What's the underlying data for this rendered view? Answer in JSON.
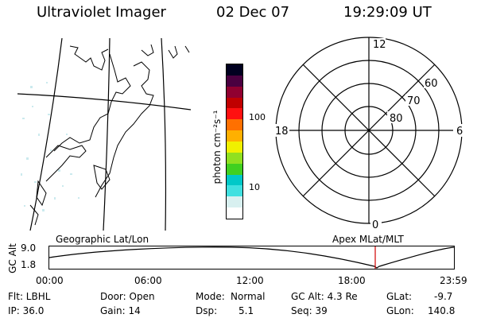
{
  "header": {
    "instrument": "Ultraviolet Imager",
    "date": "02 Dec 07",
    "time": "19:29:09 UT"
  },
  "geo_map": {
    "label": "Geographic Lat/Lon"
  },
  "colorbar": {
    "unit_label": "photon cm⁻²s⁻¹",
    "tick_100": "100",
    "tick_10": "10",
    "colors": [
      "#ffffff",
      "#d8f0f0",
      "#40e0e0",
      "#00c8c8",
      "#40d020",
      "#90e020",
      "#f0f000",
      "#ffb000",
      "#ff7000",
      "#ff1010",
      "#c00000",
      "#900030",
      "#4a0040",
      "#000020"
    ]
  },
  "polar_plot": {
    "label": "Apex MLat/MLT",
    "mlt_12": "12",
    "mlt_18": "18",
    "mlt_6": "6",
    "mlt_0": "0",
    "lat_60": "60",
    "lat_70": "70",
    "lat_80": "80"
  },
  "altitude_plot": {
    "axis_label": "GC Alt",
    "y_max": "9.0",
    "y_min": "1.8",
    "x_ticks": [
      "00:00",
      "06:00",
      "12:00",
      "18:00",
      "23:59"
    ],
    "marker_color": "#d00000"
  },
  "footer": {
    "filter": "Flt: LBHL",
    "door": "Door: Open",
    "mode_label": "Mode:",
    "mode_value": "Normal",
    "gc_alt": "GC Alt: 4.3 Re",
    "glat_label": "GLat:",
    "glat_value": "-9.7",
    "ip": "IP: 36.0",
    "gain": "Gain: 14",
    "dsp_label": "Dsp:",
    "dsp_value": "5.1",
    "seq": "Seq: 39",
    "glon_label": "GLon:",
    "glon_value": "140.8"
  }
}
